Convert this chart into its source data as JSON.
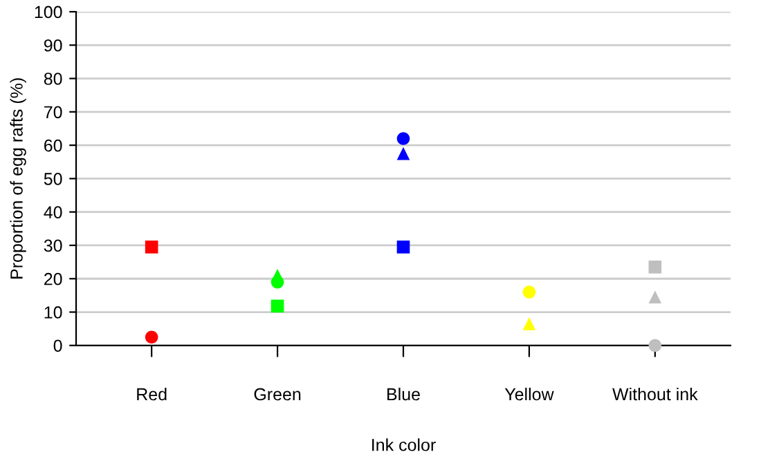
{
  "chart_data": {
    "type": "scatter",
    "xlabel": "Ink color",
    "ylabel": "Proportion of egg rafts (%)",
    "categories": [
      "Red",
      "Green",
      "Blue",
      "Yellow",
      "Without ink"
    ],
    "series": [
      {
        "marker": "square",
        "colors": [
          "#ff0000",
          "#00ff00",
          "#0000ff",
          "#ffff00",
          "#bfbfbf"
        ],
        "values": [
          29.5,
          11.8,
          29.5,
          null,
          23.5
        ]
      },
      {
        "marker": "triangle",
        "colors": [
          "#ff0000",
          "#00ff00",
          "#0000ff",
          "#ffff00",
          "#bfbfbf"
        ],
        "values": [
          null,
          21,
          57.5,
          6.5,
          14.5
        ]
      },
      {
        "marker": "circle",
        "colors": [
          "#ff0000",
          "#00ff00",
          "#0000ff",
          "#ffff00",
          "#bfbfbf"
        ],
        "values": [
          2.5,
          19,
          62,
          16,
          0
        ]
      }
    ],
    "ylim": [
      0,
      100
    ],
    "yticks": [
      0,
      10,
      20,
      30,
      40,
      50,
      60,
      70,
      80,
      90,
      100
    ],
    "grid": "y",
    "legend": false
  }
}
